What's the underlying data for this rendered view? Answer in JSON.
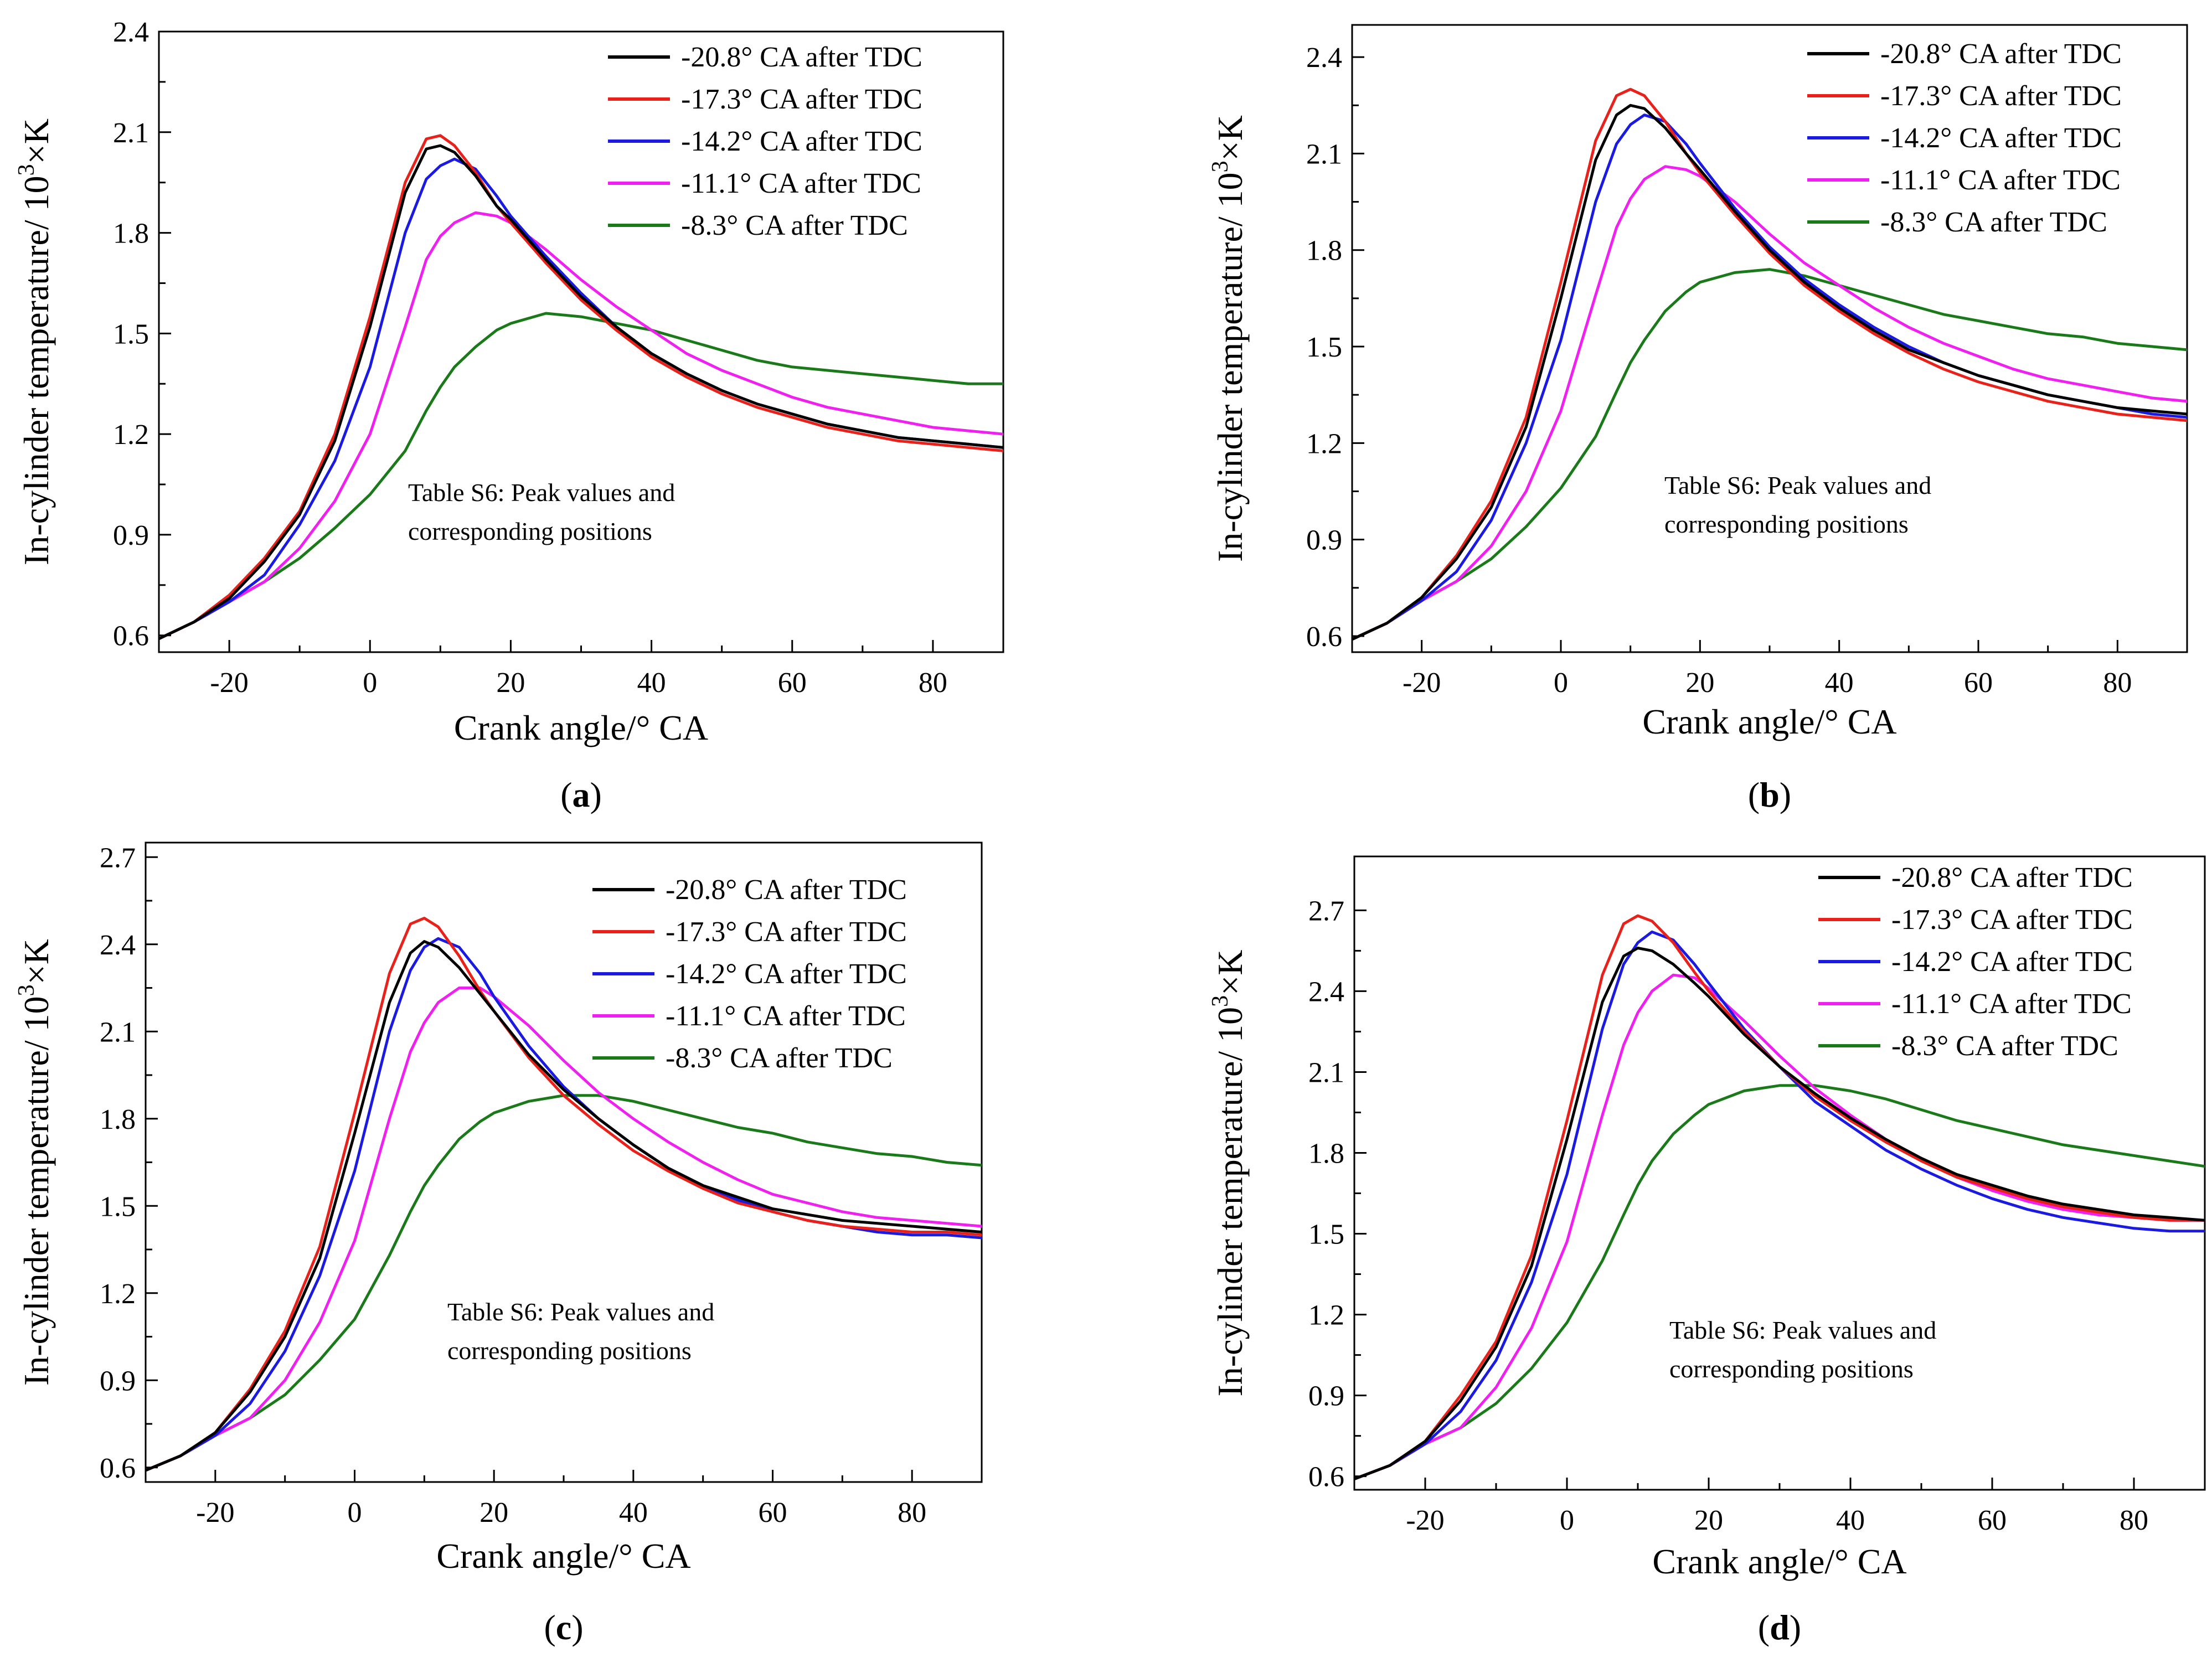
{
  "figure": {
    "annotation_line1": "Table S6: Peak values and",
    "annotation_line2": "corresponding positions"
  },
  "chart_data": [
    {
      "type": "line",
      "panel_label": "a",
      "xlabel": "Crank angle/° CA",
      "ylabel_main": "In-cylinder temperature/ 10",
      "ylabel_sup": "3",
      "ylabel_tail": "×K",
      "xlim": [
        -30,
        90
      ],
      "ylim": [
        0.55,
        2.4
      ],
      "xticks": [
        -20,
        0,
        20,
        40,
        60,
        80
      ],
      "yticks": [
        0.6,
        0.9,
        1.2,
        1.5,
        1.8,
        2.1,
        2.4
      ],
      "xtick_labels": [
        "-20",
        "0",
        "20",
        "40",
        "60",
        "80"
      ],
      "ytick_labels": [
        "0.6",
        "0.9",
        "1.2",
        "1.5",
        "1.8",
        "2.1",
        "2.4"
      ],
      "x": [
        -30,
        -25,
        -20,
        -15,
        -10,
        -5,
        0,
        5,
        8,
        10,
        12,
        15,
        18,
        20,
        25,
        30,
        35,
        40,
        45,
        50,
        55,
        60,
        65,
        70,
        75,
        80,
        85,
        90
      ],
      "series": [
        {
          "name": "-20.8° CA after TDC",
          "color": "#000000",
          "values": [
            0.59,
            0.64,
            0.71,
            0.82,
            0.96,
            1.18,
            1.52,
            1.92,
            2.05,
            2.06,
            2.04,
            1.97,
            1.88,
            1.84,
            1.72,
            1.61,
            1.52,
            1.44,
            1.38,
            1.33,
            1.29,
            1.26,
            1.23,
            1.21,
            1.19,
            1.18,
            1.17,
            1.16
          ]
        },
        {
          "name": "-17.3° CA after TDC",
          "color": "#e8211a",
          "values": [
            0.59,
            0.64,
            0.72,
            0.83,
            0.97,
            1.2,
            1.55,
            1.95,
            2.08,
            2.09,
            2.06,
            1.98,
            1.88,
            1.83,
            1.71,
            1.6,
            1.51,
            1.43,
            1.37,
            1.32,
            1.28,
            1.25,
            1.22,
            1.2,
            1.18,
            1.17,
            1.16,
            1.15
          ]
        },
        {
          "name": "-14.2° CA after TDC",
          "color": "#1a1ae0",
          "values": [
            0.59,
            0.64,
            0.7,
            0.78,
            0.93,
            1.12,
            1.4,
            1.8,
            1.96,
            2.0,
            2.02,
            1.99,
            1.91,
            1.85,
            1.73,
            1.62,
            1.52,
            1.44,
            1.38,
            1.33,
            1.29,
            1.26,
            1.23,
            1.21,
            1.19,
            1.18,
            1.17,
            1.16
          ]
        },
        {
          "name": "-11.1° CA after TDC",
          "color": "#f020f0",
          "values": [
            0.59,
            0.64,
            0.7,
            0.76,
            0.86,
            1.0,
            1.2,
            1.52,
            1.72,
            1.79,
            1.83,
            1.86,
            1.85,
            1.83,
            1.75,
            1.66,
            1.58,
            1.51,
            1.44,
            1.39,
            1.35,
            1.31,
            1.28,
            1.26,
            1.24,
            1.22,
            1.21,
            1.2
          ]
        },
        {
          "name": "-8.3° CA after TDC",
          "color": "#1a7a1a",
          "values": [
            0.59,
            0.64,
            0.7,
            0.76,
            0.83,
            0.92,
            1.02,
            1.15,
            1.27,
            1.34,
            1.4,
            1.46,
            1.51,
            1.53,
            1.56,
            1.55,
            1.53,
            1.51,
            1.48,
            1.45,
            1.42,
            1.4,
            1.39,
            1.38,
            1.37,
            1.36,
            1.35,
            1.35
          ]
        }
      ]
    },
    {
      "type": "line",
      "panel_label": "b",
      "xlabel": "Crank angle/° CA",
      "ylabel_main": "In-cylinder temperature/ 10",
      "ylabel_sup": "3",
      "ylabel_tail": "×K",
      "xlim": [
        -30,
        90
      ],
      "ylim": [
        0.55,
        2.5
      ],
      "xticks": [
        -20,
        0,
        20,
        40,
        60,
        80
      ],
      "yticks": [
        0.6,
        0.9,
        1.2,
        1.5,
        1.8,
        2.1,
        2.4
      ],
      "xtick_labels": [
        "-20",
        "0",
        "20",
        "40",
        "60",
        "80"
      ],
      "ytick_labels": [
        "0.6",
        "0.9",
        "1.2",
        "1.5",
        "1.8",
        "2.1",
        "2.4"
      ],
      "x": [
        -30,
        -25,
        -20,
        -15,
        -10,
        -5,
        0,
        5,
        8,
        10,
        12,
        15,
        18,
        20,
        25,
        30,
        35,
        40,
        45,
        50,
        55,
        60,
        65,
        70,
        75,
        80,
        85,
        90
      ],
      "series": [
        {
          "name": "-20.8° CA after TDC",
          "color": "#000000",
          "values": [
            0.59,
            0.64,
            0.72,
            0.84,
            1.0,
            1.25,
            1.65,
            2.08,
            2.22,
            2.25,
            2.24,
            2.18,
            2.1,
            2.05,
            1.92,
            1.8,
            1.7,
            1.62,
            1.55,
            1.49,
            1.45,
            1.41,
            1.38,
            1.35,
            1.33,
            1.31,
            1.3,
            1.29
          ]
        },
        {
          "name": "-17.3° CA after TDC",
          "color": "#e8211a",
          "values": [
            0.59,
            0.64,
            0.72,
            0.85,
            1.02,
            1.28,
            1.7,
            2.14,
            2.28,
            2.3,
            2.28,
            2.2,
            2.1,
            2.04,
            1.91,
            1.79,
            1.69,
            1.61,
            1.54,
            1.48,
            1.43,
            1.39,
            1.36,
            1.33,
            1.31,
            1.29,
            1.28,
            1.27
          ]
        },
        {
          "name": "-14.2° CA after TDC",
          "color": "#1a1ae0",
          "values": [
            0.59,
            0.64,
            0.71,
            0.8,
            0.96,
            1.2,
            1.52,
            1.95,
            2.13,
            2.19,
            2.22,
            2.2,
            2.13,
            2.07,
            1.93,
            1.81,
            1.71,
            1.63,
            1.56,
            1.5,
            1.45,
            1.41,
            1.38,
            1.35,
            1.33,
            1.31,
            1.29,
            1.28
          ]
        },
        {
          "name": "-11.1° CA after TDC",
          "color": "#f020f0",
          "values": [
            0.59,
            0.64,
            0.71,
            0.77,
            0.88,
            1.05,
            1.3,
            1.66,
            1.87,
            1.96,
            2.02,
            2.06,
            2.05,
            2.03,
            1.95,
            1.85,
            1.76,
            1.69,
            1.62,
            1.56,
            1.51,
            1.47,
            1.43,
            1.4,
            1.38,
            1.36,
            1.34,
            1.33
          ]
        },
        {
          "name": "-8.3° CA after TDC",
          "color": "#1a7a1a",
          "values": [
            0.59,
            0.64,
            0.71,
            0.77,
            0.84,
            0.94,
            1.06,
            1.22,
            1.36,
            1.45,
            1.52,
            1.61,
            1.67,
            1.7,
            1.73,
            1.74,
            1.72,
            1.69,
            1.66,
            1.63,
            1.6,
            1.58,
            1.56,
            1.54,
            1.53,
            1.51,
            1.5,
            1.49
          ]
        }
      ]
    },
    {
      "type": "line",
      "panel_label": "c",
      "xlabel": "Crank angle/° CA",
      "ylabel_main": "In-cylinder temperature/ 10",
      "ylabel_sup": "3",
      "ylabel_tail": "×K",
      "xlim": [
        -30,
        90
      ],
      "ylim": [
        0.55,
        2.75
      ],
      "xticks": [
        -20,
        0,
        20,
        40,
        60,
        80
      ],
      "yticks": [
        0.6,
        0.9,
        1.2,
        1.5,
        1.8,
        2.1,
        2.4,
        2.7
      ],
      "xtick_labels": [
        "-20",
        "0",
        "20",
        "40",
        "60",
        "80"
      ],
      "ytick_labels": [
        "0.6",
        "0.9",
        "1.2",
        "1.5",
        "1.8",
        "2.1",
        "2.4",
        "2.7"
      ],
      "x": [
        -30,
        -25,
        -20,
        -15,
        -10,
        -5,
        0,
        5,
        8,
        10,
        12,
        15,
        18,
        20,
        25,
        30,
        35,
        40,
        45,
        50,
        55,
        60,
        65,
        70,
        75,
        80,
        85,
        90
      ],
      "series": [
        {
          "name": "-20.8° CA after TDC",
          "color": "#000000",
          "values": [
            0.59,
            0.64,
            0.72,
            0.86,
            1.05,
            1.32,
            1.75,
            2.2,
            2.37,
            2.41,
            2.39,
            2.32,
            2.23,
            2.17,
            2.02,
            1.9,
            1.8,
            1.71,
            1.63,
            1.57,
            1.53,
            1.49,
            1.47,
            1.45,
            1.44,
            1.43,
            1.42,
            1.41
          ]
        },
        {
          "name": "-17.3° CA after TDC",
          "color": "#e8211a",
          "values": [
            0.59,
            0.64,
            0.72,
            0.87,
            1.07,
            1.36,
            1.82,
            2.3,
            2.47,
            2.49,
            2.46,
            2.36,
            2.24,
            2.17,
            2.01,
            1.88,
            1.78,
            1.69,
            1.62,
            1.56,
            1.51,
            1.48,
            1.45,
            1.43,
            1.42,
            1.41,
            1.41,
            1.4
          ]
        },
        {
          "name": "-14.2° CA after TDC",
          "color": "#1a1ae0",
          "values": [
            0.59,
            0.64,
            0.71,
            0.82,
            1.0,
            1.26,
            1.62,
            2.1,
            2.31,
            2.39,
            2.42,
            2.39,
            2.3,
            2.22,
            2.05,
            1.91,
            1.8,
            1.71,
            1.63,
            1.57,
            1.52,
            1.48,
            1.45,
            1.43,
            1.41,
            1.4,
            1.4,
            1.39
          ]
        },
        {
          "name": "-11.1° CA after TDC",
          "color": "#f020f0",
          "values": [
            0.59,
            0.64,
            0.71,
            0.77,
            0.9,
            1.1,
            1.38,
            1.8,
            2.03,
            2.13,
            2.2,
            2.25,
            2.25,
            2.22,
            2.12,
            2.0,
            1.89,
            1.8,
            1.72,
            1.65,
            1.59,
            1.54,
            1.51,
            1.48,
            1.46,
            1.45,
            1.44,
            1.43
          ]
        },
        {
          "name": "-8.3° CA after TDC",
          "color": "#1a7a1a",
          "values": [
            0.59,
            0.64,
            0.71,
            0.77,
            0.85,
            0.97,
            1.11,
            1.33,
            1.48,
            1.57,
            1.64,
            1.73,
            1.79,
            1.82,
            1.86,
            1.88,
            1.88,
            1.86,
            1.83,
            1.8,
            1.77,
            1.75,
            1.72,
            1.7,
            1.68,
            1.67,
            1.65,
            1.64
          ]
        }
      ]
    },
    {
      "type": "line",
      "panel_label": "d",
      "xlabel": "Crank angle/° CA",
      "ylabel_main": "In-cylinder temperature/ 10",
      "ylabel_sup": "3",
      "ylabel_tail": "×K",
      "xlim": [
        -30,
        90
      ],
      "ylim": [
        0.55,
        2.9
      ],
      "xticks": [
        -20,
        0,
        20,
        40,
        60,
        80
      ],
      "yticks": [
        0.6,
        0.9,
        1.2,
        1.5,
        1.8,
        2.1,
        2.4,
        2.7
      ],
      "xtick_labels": [
        "-20",
        "0",
        "20",
        "40",
        "60",
        "80"
      ],
      "ytick_labels": [
        "0.6",
        "0.9",
        "1.2",
        "1.5",
        "1.8",
        "2.1",
        "2.4",
        "2.7"
      ],
      "x": [
        -30,
        -25,
        -20,
        -15,
        -10,
        -5,
        0,
        5,
        8,
        10,
        12,
        15,
        18,
        20,
        25,
        30,
        35,
        40,
        45,
        50,
        55,
        60,
        65,
        70,
        75,
        80,
        85,
        90
      ],
      "series": [
        {
          "name": "-20.8° CA after TDC",
          "color": "#000000",
          "values": [
            0.59,
            0.64,
            0.73,
            0.88,
            1.08,
            1.38,
            1.85,
            2.36,
            2.53,
            2.56,
            2.55,
            2.5,
            2.43,
            2.38,
            2.24,
            2.12,
            2.02,
            1.93,
            1.85,
            1.78,
            1.72,
            1.68,
            1.64,
            1.61,
            1.59,
            1.57,
            1.56,
            1.55
          ]
        },
        {
          "name": "-17.3° CA after TDC",
          "color": "#e8211a",
          "values": [
            0.59,
            0.64,
            0.73,
            0.9,
            1.1,
            1.42,
            1.92,
            2.46,
            2.65,
            2.68,
            2.66,
            2.58,
            2.47,
            2.4,
            2.25,
            2.12,
            2.01,
            1.92,
            1.84,
            1.77,
            1.71,
            1.67,
            1.63,
            1.6,
            1.58,
            1.56,
            1.55,
            1.55
          ]
        },
        {
          "name": "-14.2° CA after TDC",
          "color": "#1a1ae0",
          "values": [
            0.59,
            0.64,
            0.72,
            0.84,
            1.03,
            1.32,
            1.72,
            2.26,
            2.5,
            2.58,
            2.62,
            2.59,
            2.5,
            2.43,
            2.26,
            2.12,
            1.99,
            1.9,
            1.81,
            1.74,
            1.68,
            1.63,
            1.59,
            1.56,
            1.54,
            1.52,
            1.51,
            1.51
          ]
        },
        {
          "name": "-11.1° CA after TDC",
          "color": "#f020f0",
          "values": [
            0.59,
            0.64,
            0.72,
            0.78,
            0.93,
            1.15,
            1.47,
            1.94,
            2.2,
            2.32,
            2.4,
            2.46,
            2.45,
            2.41,
            2.29,
            2.16,
            2.04,
            1.94,
            1.85,
            1.77,
            1.71,
            1.66,
            1.62,
            1.59,
            1.57,
            1.56,
            1.55,
            1.55
          ]
        },
        {
          "name": "-8.3° CA after TDC",
          "color": "#1a7a1a",
          "values": [
            0.59,
            0.64,
            0.72,
            0.78,
            0.87,
            1.0,
            1.17,
            1.4,
            1.57,
            1.68,
            1.77,
            1.87,
            1.94,
            1.98,
            2.03,
            2.05,
            2.05,
            2.03,
            2.0,
            1.96,
            1.92,
            1.89,
            1.86,
            1.83,
            1.81,
            1.79,
            1.77,
            1.75
          ]
        }
      ]
    }
  ]
}
